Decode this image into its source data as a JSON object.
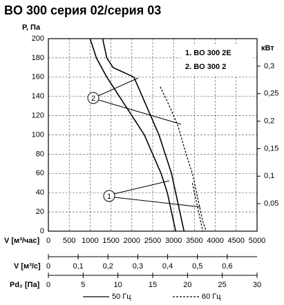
{
  "chart_data": {
    "type": "line",
    "title": "BO 300 серия 02/серия 03",
    "y_label": "P, Па",
    "y2_label": "кВт",
    "x_label": "V [м³/час]",
    "xlim": [
      0,
      5000
    ],
    "xticks": [
      0,
      500,
      1000,
      1500,
      2000,
      2500,
      3000,
      3500,
      4000,
      4500,
      5000
    ],
    "ylim": [
      0,
      200
    ],
    "yticks": [
      0,
      20,
      40,
      60,
      80,
      100,
      120,
      140,
      160,
      180,
      200
    ],
    "y2lim": [
      0,
      0.35
    ],
    "y2ticks": [
      {
        "value": 0.05,
        "label": "0,05"
      },
      {
        "value": 0.1,
        "label": "0,1"
      },
      {
        "value": 0.15,
        "label": "0,15"
      },
      {
        "value": 0.2,
        "label": "0,2"
      },
      {
        "value": 0.25,
        "label": "0,25"
      },
      {
        "value": 0.3,
        "label": "0,3"
      }
    ],
    "grid": true,
    "model_key": [
      "1. BO 300 2E",
      "2. BO 300 2"
    ],
    "curve_labels": [
      "1",
      "2"
    ],
    "extra_axes": [
      {
        "label": "V [м³/с]",
        "lim": [
          0,
          0.7
        ],
        "ticks": [
          0,
          {
            "value": 0.1,
            "label": "0,1"
          },
          {
            "value": 0.2,
            "label": "0,2"
          },
          {
            "value": 0.3,
            "label": "0,3"
          },
          {
            "value": 0.4,
            "label": "0,4"
          },
          {
            "value": 0.5,
            "label": "0,5"
          },
          {
            "value": 0.6,
            "label": "0,6"
          }
        ]
      },
      {
        "label": "Pd₂ [Па]",
        "lim": [
          0,
          30
        ],
        "ticks": [
          0,
          5,
          10,
          15,
          20,
          25,
          30
        ]
      }
    ],
    "series": [
      {
        "name": "50 Гц",
        "color": "#000000",
        "dashed": false,
        "curves": [
          {
            "x": [
              1000,
              1150,
              1400,
              1700,
              2000,
              2300,
              2500,
              2700,
              2850,
              2950,
              3050
            ],
            "values": [
              200,
              180,
              160,
              140,
              120,
              100,
              80,
              60,
              40,
              20,
              0
            ]
          },
          {
            "x": [
              1300,
              1400,
              1550,
              1800,
              2050,
              2250,
              2450,
              2650,
              2800,
              2950,
              3050,
              3150,
              3250
            ],
            "values": [
              200,
              180,
              170,
              165,
              160,
              140,
              120,
              100,
              80,
              60,
              40,
              20,
              0
            ]
          }
        ]
      },
      {
        "name": "60 Гц",
        "color": "#000000",
        "dashed": true,
        "curves": [
          {
            "x": [
              2680,
              2900,
              3100,
              3300,
              3450,
              3600,
              3700,
              3780
            ],
            "values": [
              150,
              130,
              110,
              80,
              60,
              30,
              10,
              0
            ]
          },
          {
            "x": [
              3450,
              3550,
              3650,
              3700
            ],
            "values": [
              50,
              30,
              10,
              0
            ]
          }
        ]
      }
    ]
  }
}
